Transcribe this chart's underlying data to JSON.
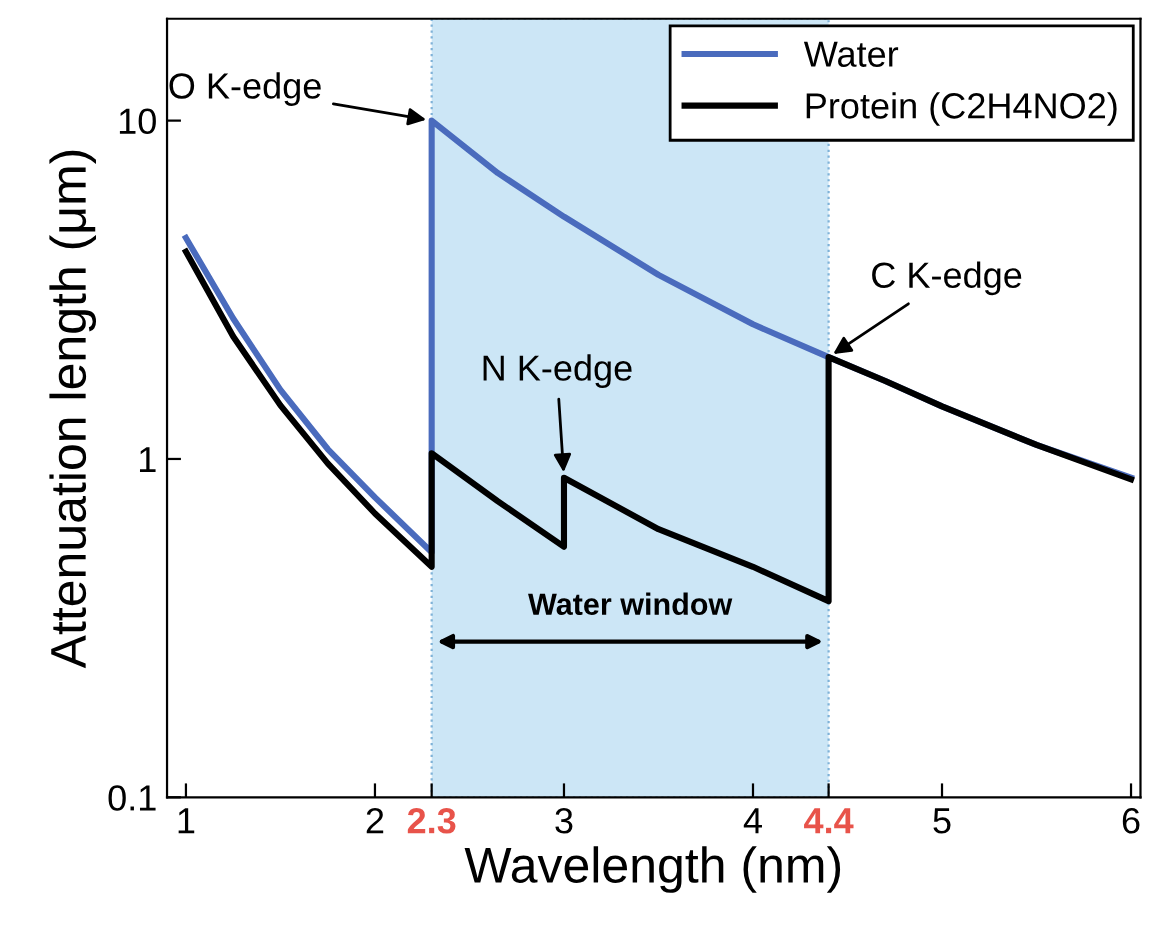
{
  "chart_data": {
    "type": "line",
    "xlabel": "Wavelength (nm)",
    "ylabel": "Attenuation length (μm)",
    "series": [
      {
        "name": "Water",
        "color": "#4a6bbd",
        "x": [
          1,
          1.25,
          1.5,
          1.75,
          2,
          2.3,
          2.3,
          2.65,
          3,
          3.5,
          4,
          4.4,
          4.7,
          5,
          5.5,
          6
        ],
        "values": [
          4.5,
          2.6,
          1.6,
          1.07,
          0.77,
          0.53,
          10,
          7,
          5.2,
          3.5,
          2.5,
          2.0,
          1.7,
          1.43,
          1.1,
          0.88
        ]
      },
      {
        "name": "Protein (C2H4NO2)",
        "color": "#000000",
        "x": [
          1,
          1.25,
          1.5,
          1.75,
          2,
          2.3,
          2.3,
          2.65,
          3,
          3,
          3.5,
          4,
          4.4,
          4.4,
          4.7,
          5,
          5.5,
          6
        ],
        "values": [
          4.1,
          2.3,
          1.44,
          0.97,
          0.69,
          0.48,
          1.04,
          0.75,
          0.55,
          0.88,
          0.62,
          0.48,
          0.38,
          2.0,
          1.7,
          1.43,
          1.1,
          0.87
        ]
      }
    ],
    "log": "y",
    "xlim": [
      0.9,
      6.05
    ],
    "ylim": [
      0.1,
      20
    ],
    "xticks": [
      1,
      2,
      2.3,
      3,
      4,
      4.4,
      5,
      6
    ],
    "yticks": [
      0.1,
      1,
      10
    ],
    "bands": [
      {
        "axis": "x",
        "from": 2.3,
        "to": 4.4,
        "label": "Water window",
        "color": "#cce6f6"
      }
    ],
    "annotations": [
      {
        "text": "O K-edge",
        "x": 2.3,
        "y": 10
      },
      {
        "text": "N K-edge",
        "x": 3,
        "y": 0.88
      },
      {
        "text": "C K-edge",
        "x": 4.4,
        "y": 2.0
      }
    ],
    "legend": "top right",
    "grid": false,
    "line_style": "solid",
    "marker": "none"
  }
}
